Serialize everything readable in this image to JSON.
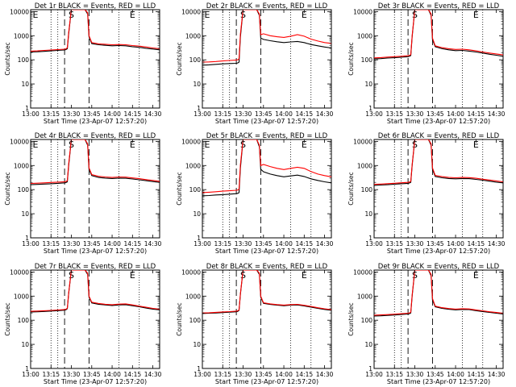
{
  "figure": {
    "xlabel": "Start Time (23-Apr-07 12:57:20)",
    "ylabel": "Counts/sec",
    "x_ticks": [
      "13:00",
      "13:15",
      "13:30",
      "13:45",
      "14:00",
      "14:15",
      "14:30"
    ],
    "y_ticks": [
      "1",
      "10",
      "100",
      "1000",
      "10000"
    ]
  },
  "chart_data": [
    {
      "type": "line",
      "title": "Det 1r BLACK = Events, RED = LLD",
      "region_markers": [
        "E",
        "S",
        "E"
      ],
      "xlim": [
        "13:00",
        "14:35"
      ],
      "ylim": [
        1,
        12000
      ],
      "yscale": "log",
      "grid": false,
      "x": [
        "13:00",
        "13:05",
        "13:10",
        "13:15",
        "13:20",
        "13:25",
        "13:26",
        "13:27",
        "13:28",
        "13:30",
        "13:35",
        "13:40",
        "13:42",
        "13:43",
        "13:45",
        "13:50",
        "13:55",
        "14:00",
        "14:05",
        "14:10",
        "14:15",
        "14:20",
        "14:25",
        "14:30",
        "14:35"
      ],
      "series": [
        {
          "color": "#000000",
          "values": [
            210,
            215,
            225,
            235,
            245,
            255,
            265,
            290,
            1200,
            12000,
            12000,
            12000,
            8000,
            900,
            470,
            420,
            400,
            380,
            390,
            380,
            350,
            330,
            300,
            280,
            260
          ]
        },
        {
          "color": "#ff0000",
          "values": [
            230,
            235,
            245,
            255,
            265,
            275,
            285,
            320,
            1400,
            12000,
            12000,
            12000,
            9000,
            1000,
            520,
            460,
            440,
            420,
            430,
            420,
            390,
            370,
            340,
            310,
            290
          ]
        }
      ]
    },
    {
      "type": "line",
      "title": "Det 2r BLACK = Events, RED = LLD",
      "region_markers": [
        "E",
        "S",
        "E"
      ],
      "xlim": [
        "13:00",
        "14:35"
      ],
      "ylim": [
        1,
        12000
      ],
      "yscale": "log",
      "grid": false,
      "x": [
        "13:00",
        "13:05",
        "13:10",
        "13:15",
        "13:20",
        "13:25",
        "13:26",
        "13:27",
        "13:28",
        "13:30",
        "13:35",
        "13:40",
        "13:42",
        "13:43",
        "13:45",
        "13:50",
        "13:55",
        "14:00",
        "14:05",
        "14:10",
        "14:15",
        "14:20",
        "14:25",
        "14:30",
        "14:35"
      ],
      "series": [
        {
          "color": "#000000",
          "values": [
            60,
            62,
            65,
            68,
            70,
            72,
            74,
            80,
            900,
            12000,
            12000,
            12000,
            7000,
            800,
            700,
            620,
            560,
            520,
            550,
            580,
            520,
            430,
            380,
            340,
            310
          ]
        },
        {
          "color": "#ff0000",
          "values": [
            80,
            82,
            85,
            90,
            94,
            98,
            100,
            110,
            1200,
            12000,
            12000,
            12000,
            8000,
            1100,
            1200,
            1000,
            900,
            850,
            950,
            1100,
            950,
            720,
            600,
            520,
            480
          ]
        }
      ]
    },
    {
      "type": "line",
      "title": "Det 3r BLACK = Events, RED = LLD",
      "region_markers": [
        "S",
        "E"
      ],
      "xlim": [
        "13:00",
        "14:35"
      ],
      "ylim": [
        1,
        12000
      ],
      "yscale": "log",
      "grid": false,
      "x": [
        "13:00",
        "13:05",
        "13:10",
        "13:15",
        "13:20",
        "13:25",
        "13:26",
        "13:27",
        "13:28",
        "13:30",
        "13:35",
        "13:40",
        "13:42",
        "13:43",
        "13:45",
        "13:50",
        "13:55",
        "14:00",
        "14:05",
        "14:10",
        "14:15",
        "14:20",
        "14:25",
        "14:30",
        "14:35"
      ],
      "series": [
        {
          "color": "#000000",
          "values": [
            110,
            112,
            118,
            122,
            128,
            135,
            140,
            150,
            900,
            12000,
            12000,
            12000,
            7000,
            700,
            350,
            290,
            260,
            240,
            245,
            230,
            210,
            190,
            170,
            155,
            140
          ]
        },
        {
          "color": "#ff0000",
          "values": [
            120,
            124,
            130,
            135,
            140,
            148,
            152,
            165,
            1000,
            12000,
            12000,
            12000,
            8000,
            800,
            380,
            320,
            290,
            270,
            275,
            260,
            235,
            210,
            190,
            175,
            160
          ]
        }
      ]
    },
    {
      "type": "line",
      "title": "Det 4r BLACK = Events, RED = LLD",
      "region_markers": [
        "E",
        "S",
        "E"
      ],
      "xlim": [
        "13:00",
        "14:35"
      ],
      "ylim": [
        1,
        12000
      ],
      "yscale": "log",
      "grid": false,
      "x": [
        "13:00",
        "13:05",
        "13:10",
        "13:15",
        "13:20",
        "13:25",
        "13:26",
        "13:27",
        "13:28",
        "13:30",
        "13:35",
        "13:40",
        "13:42",
        "13:43",
        "13:45",
        "13:50",
        "13:55",
        "14:00",
        "14:05",
        "14:10",
        "14:15",
        "14:20",
        "14:25",
        "14:30",
        "14:35"
      ],
      "series": [
        {
          "color": "#000000",
          "values": [
            160,
            165,
            170,
            175,
            182,
            190,
            195,
            210,
            1000,
            12000,
            12000,
            12000,
            7000,
            700,
            380,
            320,
            300,
            290,
            300,
            295,
            275,
            255,
            235,
            215,
            200
          ]
        },
        {
          "color": "#ff0000",
          "values": [
            180,
            185,
            190,
            198,
            205,
            212,
            218,
            235,
            1200,
            12000,
            12000,
            12000,
            8000,
            800,
            420,
            355,
            335,
            320,
            335,
            330,
            305,
            285,
            260,
            240,
            220
          ]
        }
      ]
    },
    {
      "type": "line",
      "title": "Det 5r BLACK = Events, RED = LLD",
      "region_markers": [
        "E",
        "S",
        "E"
      ],
      "xlim": [
        "13:00",
        "14:35"
      ],
      "ylim": [
        1,
        12000
      ],
      "yscale": "log",
      "grid": false,
      "x": [
        "13:00",
        "13:05",
        "13:10",
        "13:15",
        "13:20",
        "13:25",
        "13:26",
        "13:27",
        "13:28",
        "13:30",
        "13:35",
        "13:40",
        "13:42",
        "13:43",
        "13:45",
        "13:50",
        "13:55",
        "14:00",
        "14:05",
        "14:10",
        "14:15",
        "14:20",
        "14:25",
        "14:30",
        "14:35"
      ],
      "series": [
        {
          "color": "#000000",
          "values": [
            55,
            57,
            60,
            62,
            65,
            68,
            70,
            75,
            800,
            12000,
            12000,
            12000,
            6000,
            700,
            550,
            440,
            380,
            340,
            370,
            400,
            350,
            280,
            240,
            210,
            190
          ]
        },
        {
          "color": "#ff0000",
          "values": [
            75,
            78,
            82,
            86,
            90,
            94,
            96,
            105,
            1100,
            12000,
            12000,
            12000,
            7000,
            1000,
            1100,
            900,
            760,
            680,
            760,
            850,
            760,
            560,
            440,
            380,
            340
          ]
        }
      ]
    },
    {
      "type": "line",
      "title": "Det 6r BLACK = Events, RED = LLD",
      "region_markers": [
        "S",
        "E"
      ],
      "xlim": [
        "13:00",
        "14:35"
      ],
      "ylim": [
        1,
        12000
      ],
      "yscale": "log",
      "grid": false,
      "x": [
        "13:00",
        "13:05",
        "13:10",
        "13:15",
        "13:20",
        "13:25",
        "13:26",
        "13:27",
        "13:28",
        "13:30",
        "13:35",
        "13:40",
        "13:42",
        "13:43",
        "13:45",
        "13:50",
        "13:55",
        "14:00",
        "14:05",
        "14:10",
        "14:15",
        "14:20",
        "14:25",
        "14:30",
        "14:35"
      ],
      "series": [
        {
          "color": "#000000",
          "values": [
            150,
            155,
            160,
            168,
            175,
            182,
            188,
            200,
            1000,
            12000,
            12000,
            12000,
            7000,
            700,
            350,
            310,
            290,
            280,
            290,
            285,
            265,
            245,
            225,
            205,
            190
          ]
        },
        {
          "color": "#ff0000",
          "values": [
            165,
            170,
            176,
            184,
            192,
            200,
            206,
            220,
            1100,
            12000,
            12000,
            12000,
            8000,
            800,
            390,
            345,
            320,
            310,
            320,
            315,
            295,
            270,
            250,
            230,
            210
          ]
        }
      ]
    },
    {
      "type": "line",
      "title": "Det 7r BLACK = Events, RED = LLD",
      "region_markers": [
        "S",
        "E"
      ],
      "xlim": [
        "13:00",
        "14:35"
      ],
      "ylim": [
        1,
        12000
      ],
      "yscale": "log",
      "grid": false,
      "x": [
        "13:00",
        "13:05",
        "13:10",
        "13:15",
        "13:20",
        "13:25",
        "13:26",
        "13:27",
        "13:28",
        "13:30",
        "13:35",
        "13:40",
        "13:42",
        "13:43",
        "13:45",
        "13:50",
        "13:55",
        "14:00",
        "14:05",
        "14:10",
        "14:15",
        "14:20",
        "14:25",
        "14:30",
        "14:35"
      ],
      "series": [
        {
          "color": "#000000",
          "values": [
            220,
            225,
            232,
            240,
            250,
            262,
            270,
            300,
            1300,
            12000,
            12000,
            12000,
            8000,
            900,
            520,
            460,
            430,
            410,
            430,
            440,
            400,
            360,
            320,
            290,
            270
          ]
        },
        {
          "color": "#ff0000",
          "values": [
            235,
            240,
            248,
            256,
            266,
            278,
            286,
            318,
            1400,
            12000,
            12000,
            12000,
            9000,
            1000,
            560,
            495,
            460,
            440,
            465,
            475,
            430,
            385,
            345,
            310,
            290
          ]
        }
      ]
    },
    {
      "type": "line",
      "title": "Det 8r BLACK = Events, RED = LLD",
      "region_markers": [
        "S",
        "E"
      ],
      "xlim": [
        "13:00",
        "14:35"
      ],
      "ylim": [
        1,
        12000
      ],
      "yscale": "log",
      "grid": false,
      "x": [
        "13:00",
        "13:05",
        "13:10",
        "13:15",
        "13:20",
        "13:25",
        "13:26",
        "13:27",
        "13:28",
        "13:30",
        "13:35",
        "13:40",
        "13:42",
        "13:43",
        "13:45",
        "13:50",
        "13:55",
        "14:00",
        "14:05",
        "14:10",
        "14:15",
        "14:20",
        "14:25",
        "14:30",
        "14:35"
      ],
      "series": [
        {
          "color": "#000000",
          "values": [
            190,
            195,
            200,
            208,
            216,
            225,
            232,
            255,
            1200,
            12000,
            12000,
            12000,
            8000,
            900,
            500,
            450,
            420,
            400,
            420,
            430,
            390,
            350,
            310,
            280,
            260
          ]
        },
        {
          "color": "#ff0000",
          "values": [
            200,
            205,
            212,
            220,
            228,
            238,
            245,
            270,
            1300,
            12000,
            12000,
            12000,
            9000,
            1000,
            530,
            478,
            446,
            425,
            446,
            456,
            414,
            372,
            330,
            298,
            276
          ]
        }
      ]
    },
    {
      "type": "line",
      "title": "Det 9r BLACK = Events, RED = LLD",
      "region_markers": [
        "S",
        "E"
      ],
      "xlim": [
        "13:00",
        "14:35"
      ],
      "ylim": [
        1,
        12000
      ],
      "yscale": "log",
      "grid": false,
      "x": [
        "13:00",
        "13:05",
        "13:10",
        "13:15",
        "13:20",
        "13:25",
        "13:26",
        "13:27",
        "13:28",
        "13:30",
        "13:35",
        "13:40",
        "13:42",
        "13:43",
        "13:45",
        "13:50",
        "13:55",
        "14:00",
        "14:05",
        "14:10",
        "14:15",
        "14:20",
        "14:25",
        "14:30",
        "14:35"
      ],
      "series": [
        {
          "color": "#000000",
          "values": [
            150,
            153,
            158,
            165,
            172,
            180,
            186,
            200,
            1000,
            12000,
            12000,
            12000,
            7000,
            700,
            360,
            310,
            285,
            270,
            280,
            275,
            250,
            230,
            210,
            195,
            180
          ]
        },
        {
          "color": "#ff0000",
          "values": [
            162,
            166,
            171,
            178,
            186,
            195,
            201,
            216,
            1100,
            12000,
            12000,
            12000,
            8000,
            800,
            385,
            332,
            305,
            289,
            300,
            294,
            268,
            246,
            225,
            209,
            193
          ]
        }
      ]
    }
  ]
}
